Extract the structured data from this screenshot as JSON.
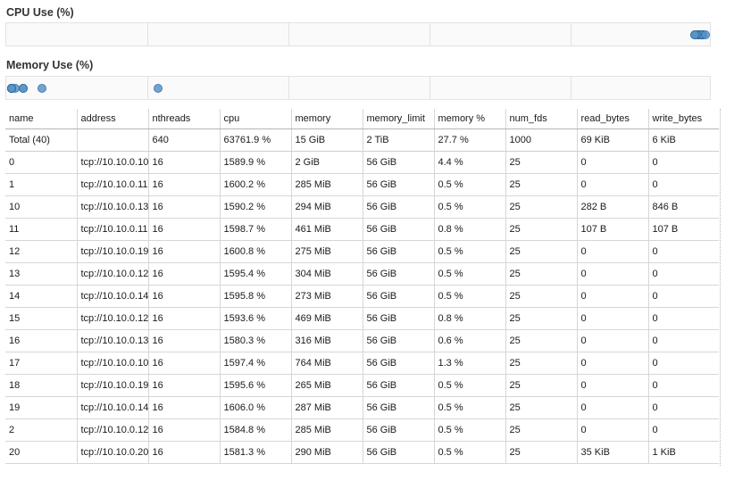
{
  "cpu_chart": {
    "title": "CPU Use (%)",
    "dot_color": "#5b96c8",
    "points": [
      {
        "value": 1589.9
      },
      {
        "value": 1600.2
      },
      {
        "value": 1590.2
      },
      {
        "value": 1598.7
      },
      {
        "value": 1600.8
      },
      {
        "value": 1595.4
      },
      {
        "value": 1595.8
      },
      {
        "value": 1593.6
      },
      {
        "value": 1580.3
      },
      {
        "value": 1597.4
      },
      {
        "value": 1595.6
      },
      {
        "value": 1606.0
      },
      {
        "value": 1584.8
      },
      {
        "value": 1581.3
      }
    ]
  },
  "memory_chart": {
    "title": "Memory Use (%)",
    "dot_color": "#5b96c8",
    "points": [
      {
        "value": 4.4
      },
      {
        "value": 0.5
      },
      {
        "value": 0.5
      },
      {
        "value": 0.8
      },
      {
        "value": 0.5
      },
      {
        "value": 0.5
      },
      {
        "value": 0.5
      },
      {
        "value": 0.8
      },
      {
        "value": 0.6
      },
      {
        "value": 1.3
      },
      {
        "value": 0.5
      },
      {
        "value": 0.5
      },
      {
        "value": 0.5
      },
      {
        "value": 0.5
      }
    ]
  },
  "table": {
    "columns": [
      "name",
      "address",
      "nthreads",
      "cpu",
      "memory",
      "memory_limit",
      "memory %",
      "num_fds",
      "read_bytes",
      "write_bytes"
    ],
    "total": [
      "Total (40)",
      "",
      "640",
      "63761.9 %",
      "15 GiB",
      "2 TiB",
      "27.7 %",
      "1000",
      "69 KiB",
      "6 KiB"
    ],
    "rows": [
      [
        "0",
        "tcp://10.10.0.10",
        "16",
        "1589.9 %",
        "2 GiB",
        "56 GiB",
        "4.4 %",
        "25",
        "0",
        "0"
      ],
      [
        "1",
        "tcp://10.10.0.11",
        "16",
        "1600.2 %",
        "285 MiB",
        "56 GiB",
        "0.5 %",
        "25",
        "0",
        "0"
      ],
      [
        "10",
        "tcp://10.10.0.13",
        "16",
        "1590.2 %",
        "294 MiB",
        "56 GiB",
        "0.5 %",
        "25",
        "282 B",
        "846 B"
      ],
      [
        "11",
        "tcp://10.10.0.11",
        "16",
        "1598.7 %",
        "461 MiB",
        "56 GiB",
        "0.8 %",
        "25",
        "107 B",
        "107 B"
      ],
      [
        "12",
        "tcp://10.10.0.19",
        "16",
        "1600.8 %",
        "275 MiB",
        "56 GiB",
        "0.5 %",
        "25",
        "0",
        "0"
      ],
      [
        "13",
        "tcp://10.10.0.12",
        "16",
        "1595.4 %",
        "304 MiB",
        "56 GiB",
        "0.5 %",
        "25",
        "0",
        "0"
      ],
      [
        "14",
        "tcp://10.10.0.14",
        "16",
        "1595.8 %",
        "273 MiB",
        "56 GiB",
        "0.5 %",
        "25",
        "0",
        "0"
      ],
      [
        "15",
        "tcp://10.10.0.12",
        "16",
        "1593.6 %",
        "469 MiB",
        "56 GiB",
        "0.8 %",
        "25",
        "0",
        "0"
      ],
      [
        "16",
        "tcp://10.10.0.13",
        "16",
        "1580.3 %",
        "316 MiB",
        "56 GiB",
        "0.6 %",
        "25",
        "0",
        "0"
      ],
      [
        "17",
        "tcp://10.10.0.10",
        "16",
        "1597.4 %",
        "764 MiB",
        "56 GiB",
        "1.3 %",
        "25",
        "0",
        "0"
      ],
      [
        "18",
        "tcp://10.10.0.19",
        "16",
        "1595.6 %",
        "265 MiB",
        "56 GiB",
        "0.5 %",
        "25",
        "0",
        "0"
      ],
      [
        "19",
        "tcp://10.10.0.14",
        "16",
        "1606.0 %",
        "287 MiB",
        "56 GiB",
        "0.5 %",
        "25",
        "0",
        "0"
      ],
      [
        "2",
        "tcp://10.10.0.12",
        "16",
        "1584.8 %",
        "285 MiB",
        "56 GiB",
        "0.5 %",
        "25",
        "0",
        "0"
      ],
      [
        "20",
        "tcp://10.10.0.20",
        "16",
        "1581.3 %",
        "290 MiB",
        "56 GiB",
        "0.5 %",
        "25",
        "35 KiB",
        "1 KiB"
      ]
    ]
  }
}
